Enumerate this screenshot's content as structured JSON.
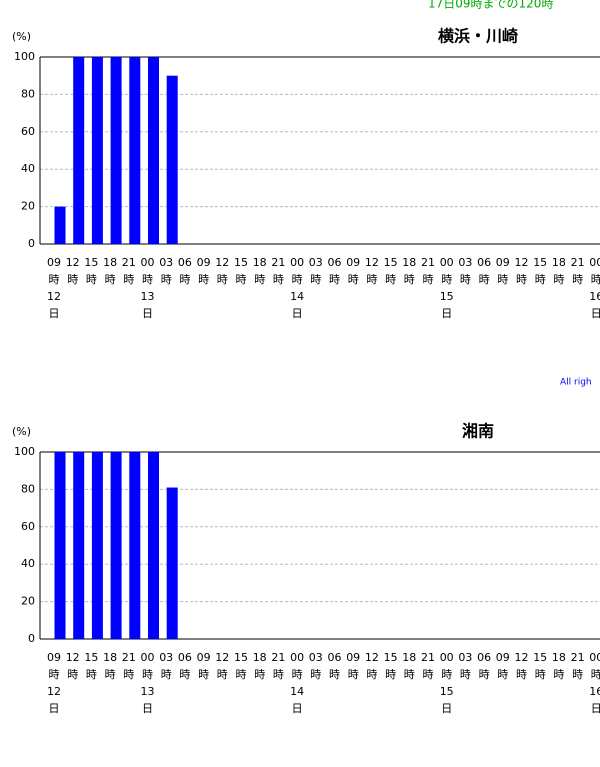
{
  "header": "17日09時までの120時",
  "footer": "All righ",
  "chart_data": [
    {
      "type": "bar",
      "title": "横浜・川崎",
      "y_unit": "(%)",
      "hour_unit": "時",
      "day_unit": "日",
      "categories": [
        "09",
        "12",
        "15",
        "18",
        "21",
        "00",
        "03",
        "06",
        "09",
        "12",
        "15",
        "18",
        "21",
        "00",
        "03",
        "06",
        "09",
        "12",
        "15",
        "18",
        "21",
        "00",
        "03",
        "06",
        "09",
        "12",
        "15",
        "18",
        "21",
        "00"
      ],
      "days": [
        "12",
        null,
        null,
        null,
        null,
        "13",
        null,
        null,
        null,
        null,
        null,
        null,
        null,
        "14",
        null,
        null,
        null,
        null,
        null,
        null,
        null,
        "15",
        null,
        null,
        null,
        null,
        null,
        null,
        null,
        "16"
      ],
      "values": [
        20,
        100,
        100,
        100,
        100,
        100,
        90,
        null,
        null,
        null,
        null,
        null,
        null,
        null,
        null,
        null,
        null,
        null,
        null,
        null,
        null,
        null,
        null,
        null,
        null,
        null,
        null,
        null,
        null,
        null
      ],
      "color": "#0000ff",
      "ylim": [
        0,
        100
      ],
      "yticks": [
        0,
        20,
        40,
        60,
        80,
        100
      ],
      "grid": true
    },
    {
      "type": "bar",
      "title": "湘南",
      "y_unit": "(%)",
      "hour_unit": "時",
      "day_unit": "日",
      "categories": [
        "09",
        "12",
        "15",
        "18",
        "21",
        "00",
        "03",
        "06",
        "09",
        "12",
        "15",
        "18",
        "21",
        "00",
        "03",
        "06",
        "09",
        "12",
        "15",
        "18",
        "21",
        "00",
        "03",
        "06",
        "09",
        "12",
        "15",
        "18",
        "21",
        "00"
      ],
      "days": [
        "12",
        null,
        null,
        null,
        null,
        "13",
        null,
        null,
        null,
        null,
        null,
        null,
        null,
        "14",
        null,
        null,
        null,
        null,
        null,
        null,
        null,
        "15",
        null,
        null,
        null,
        null,
        null,
        null,
        null,
        "16"
      ],
      "values": [
        100,
        100,
        100,
        100,
        100,
        100,
        81,
        null,
        null,
        null,
        null,
        null,
        null,
        null,
        null,
        null,
        null,
        null,
        null,
        null,
        null,
        null,
        null,
        null,
        null,
        null,
        null,
        null,
        null,
        null
      ],
      "color": "#0000ff",
      "ylim": [
        0,
        100
      ],
      "yticks": [
        0,
        20,
        40,
        60,
        80,
        100
      ],
      "grid": true
    }
  ]
}
